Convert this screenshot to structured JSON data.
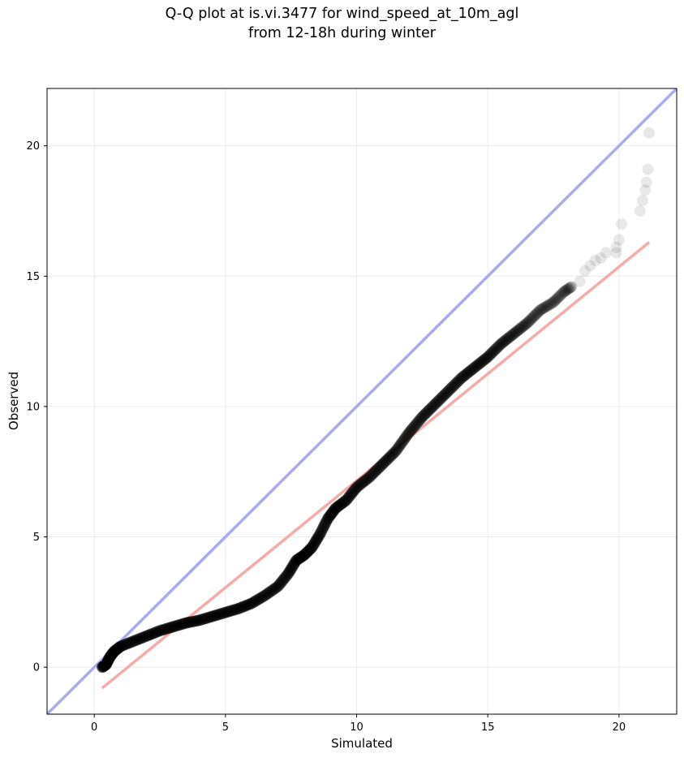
{
  "chart_data": {
    "type": "scatter",
    "title": "Q-Q plot at is.vi.3477 for wind_speed_at_10m_agl",
    "subtitle": "from 12-18h during winter",
    "xlabel": "Simulated",
    "ylabel": "Observed",
    "xlim": [
      -1.8,
      22.2
    ],
    "ylim": [
      -1.8,
      22.2
    ],
    "xticks": [
      0,
      5,
      10,
      15,
      20
    ],
    "yticks": [
      0,
      5,
      10,
      15,
      20
    ],
    "grid": true,
    "colors": {
      "points": "#000000",
      "identity_line": "#aaaaf0",
      "fit_line": "#f5a6a6",
      "grid": "#ebebeb"
    },
    "identity_line": {
      "x": [
        -1.8,
        22.2
      ],
      "y": [
        -1.8,
        22.2
      ]
    },
    "fit_line": {
      "x": [
        0.3,
        21.15
      ],
      "y": [
        -0.8,
        16.3
      ]
    },
    "quantile_curve": [
      [
        0.3,
        0.0
      ],
      [
        0.45,
        0.1
      ],
      [
        0.6,
        0.4
      ],
      [
        0.75,
        0.6
      ],
      [
        1.0,
        0.8
      ],
      [
        1.5,
        1.0
      ],
      [
        2.0,
        1.2
      ],
      [
        2.5,
        1.4
      ],
      [
        3.0,
        1.55
      ],
      [
        3.5,
        1.7
      ],
      [
        4.0,
        1.8
      ],
      [
        4.5,
        1.95
      ],
      [
        5.0,
        2.1
      ],
      [
        5.5,
        2.25
      ],
      [
        6.0,
        2.45
      ],
      [
        6.5,
        2.75
      ],
      [
        7.0,
        3.1
      ],
      [
        7.4,
        3.6
      ],
      [
        7.7,
        4.1
      ],
      [
        8.0,
        4.3
      ],
      [
        8.3,
        4.6
      ],
      [
        8.6,
        5.1
      ],
      [
        8.9,
        5.7
      ],
      [
        9.2,
        6.1
      ],
      [
        9.6,
        6.4
      ],
      [
        10.0,
        6.9
      ],
      [
        10.5,
        7.3
      ],
      [
        11.0,
        7.8
      ],
      [
        11.5,
        8.3
      ],
      [
        12.0,
        9.0
      ],
      [
        12.5,
        9.6
      ],
      [
        13.0,
        10.1
      ],
      [
        13.5,
        10.6
      ],
      [
        14.0,
        11.1
      ],
      [
        14.5,
        11.5
      ],
      [
        15.0,
        11.9
      ],
      [
        15.5,
        12.4
      ],
      [
        16.0,
        12.8
      ],
      [
        16.5,
        13.2
      ],
      [
        17.0,
        13.7
      ],
      [
        17.5,
        14.0
      ],
      [
        17.9,
        14.4
      ],
      [
        18.2,
        14.6
      ]
    ],
    "upper_tail": [
      [
        18.5,
        14.8
      ],
      [
        18.7,
        15.2
      ],
      [
        18.9,
        15.4
      ],
      [
        19.1,
        15.6
      ],
      [
        19.3,
        15.7
      ],
      [
        19.5,
        15.9
      ],
      [
        19.9,
        15.9
      ],
      [
        19.9,
        16.1
      ],
      [
        20.0,
        16.4
      ],
      [
        20.1,
        17.0
      ],
      [
        20.8,
        17.5
      ],
      [
        20.9,
        17.9
      ],
      [
        21.0,
        18.3
      ],
      [
        21.05,
        18.6
      ],
      [
        21.1,
        19.1
      ],
      [
        21.15,
        20.5
      ]
    ]
  }
}
